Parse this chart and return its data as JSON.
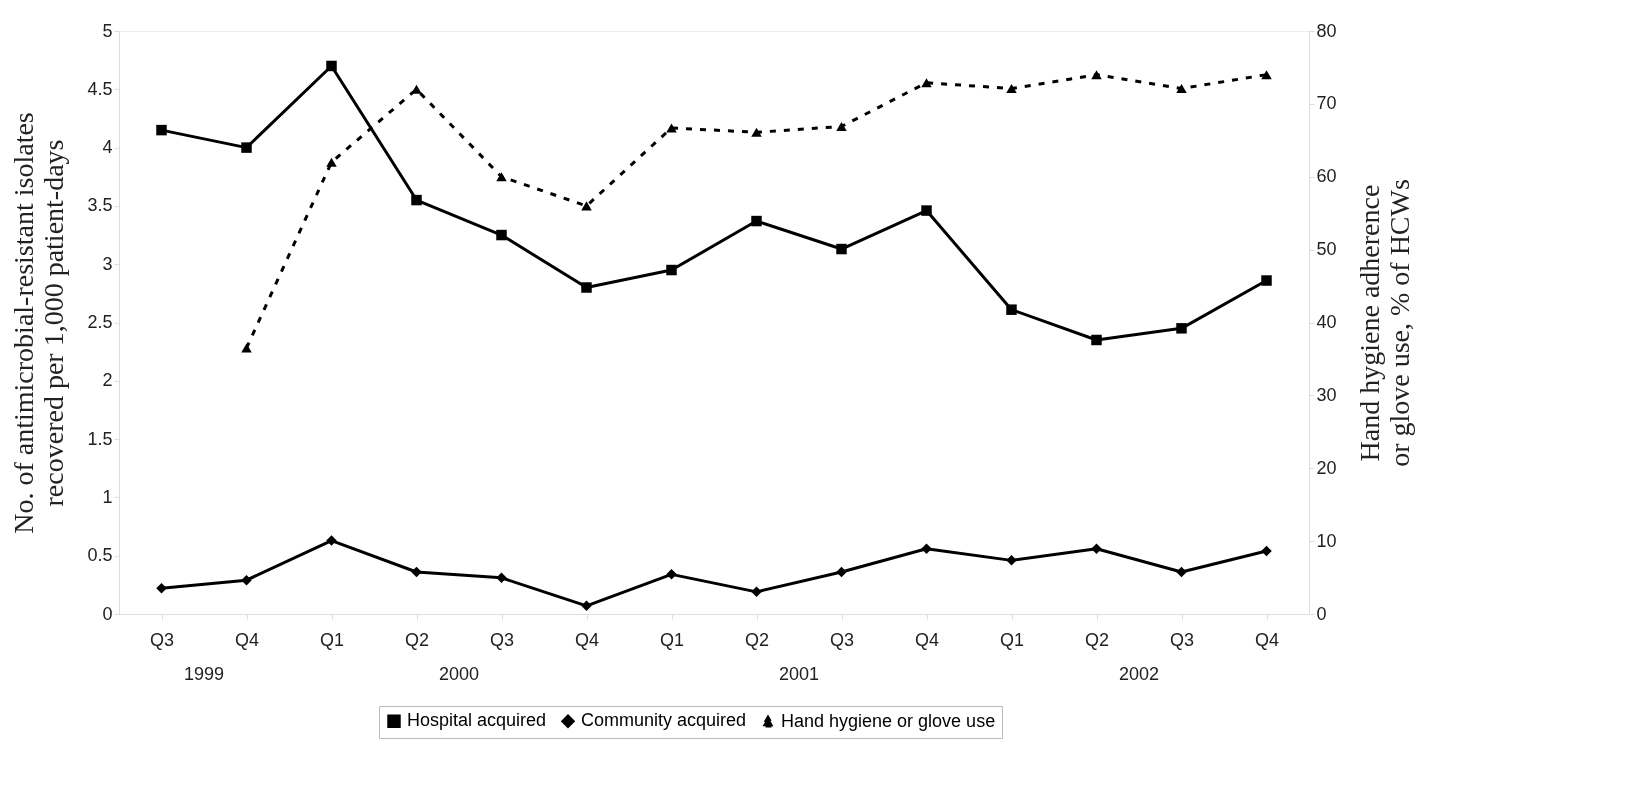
{
  "chart_data": {
    "type": "line",
    "categories": [
      "Q3",
      "Q4",
      "Q1",
      "Q2",
      "Q3",
      "Q4",
      "Q1",
      "Q2",
      "Q3",
      "Q4",
      "Q1",
      "Q2",
      "Q3",
      "Q4"
    ],
    "ylabel": "No. of antimicrobial-resistant isolates recovered per 1,000 patient-days",
    "y2label": "Hand hygiene adherence or glove use, % of HCWs",
    "ylim": [
      0,
      5
    ],
    "yticks": [
      0,
      0.5,
      1,
      1.5,
      2,
      2.5,
      3,
      3.5,
      4,
      4.5,
      5
    ],
    "y2lim": [
      0,
      80
    ],
    "y2ticks": [
      0,
      10,
      20,
      30,
      40,
      50,
      60,
      70,
      80
    ],
    "annotations": [
      "1999",
      "2000",
      "2001",
      "2002"
    ],
    "legend": "bottom",
    "grid": false,
    "series": [
      {
        "name": "Hospital acquired",
        "color": "#000000",
        "marker": "square",
        "line_style": "solid",
        "values": [
          4.15,
          4.0,
          4.7,
          3.55,
          3.25,
          2.8,
          2.95,
          3.37,
          3.13,
          3.46,
          2.61,
          2.35,
          2.45,
          2.86
        ]
      },
      {
        "name": "Community acquired",
        "color": "#000000",
        "marker": "diamond",
        "line_style": "solid",
        "values": [
          0.22,
          0.29,
          0.63,
          0.36,
          0.31,
          0.07,
          0.34,
          0.19,
          0.36,
          0.56,
          0.46,
          0.56,
          0.36,
          0.54
        ]
      },
      {
        "name": "Hand hygiene or glove use",
        "color": "#000000",
        "marker": "triangle",
        "line_style": "dashed",
        "axis": "y2",
        "values": [
          null,
          36.5,
          62,
          72,
          60,
          56,
          66.7,
          66.1,
          66.9,
          72.9,
          72.1,
          74,
          72.1,
          74
        ]
      }
    ]
  }
}
